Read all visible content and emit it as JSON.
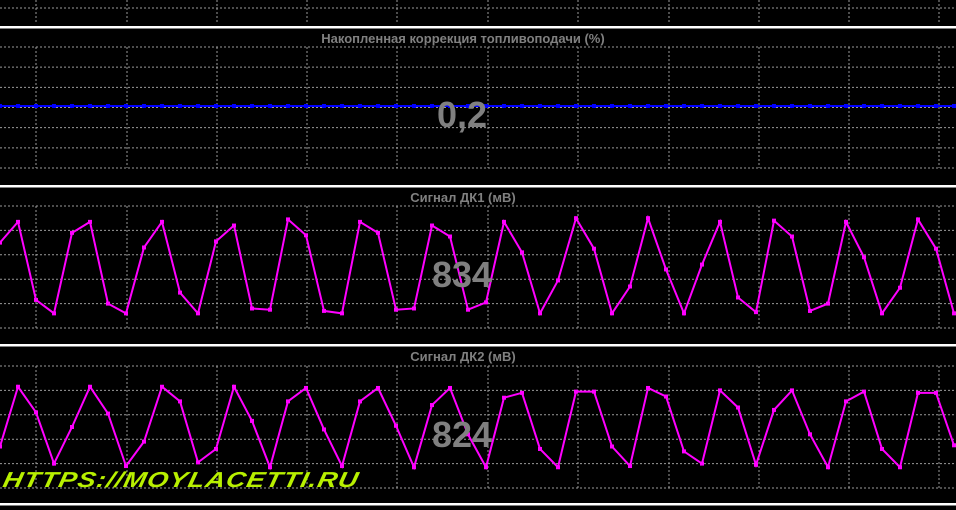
{
  "colors": {
    "grid": "#9a9a9a",
    "separator": "#ffffff",
    "title": "#808080",
    "fuel_trim": "#0000ff",
    "o2": "#ff00ff",
    "watermark": "#b8f000"
  },
  "watermark": "HTTPS://MOYLACETTI.RU",
  "chart_data": [
    {
      "type": "line",
      "title": "Накопленная коррекция топливоподачи  (%)",
      "current_value": "0,2",
      "ylim": [
        -30,
        30
      ],
      "grid": true,
      "values": [
        0.2,
        0.2,
        0.2,
        0.2,
        0.2,
        0.2,
        0.2,
        0.2,
        0.2,
        0.2,
        0.2,
        0.2,
        0.2,
        0.2,
        0.2,
        0.2,
        0.2,
        0.2,
        0.2,
        0.2,
        0.2,
        0.2,
        0.2,
        0.2,
        0.2,
        0.2,
        0.2,
        0.2,
        0.2,
        0.2,
        0.2,
        0.2,
        0.2,
        0.2,
        0.2,
        0.2,
        0.2,
        0.2,
        0.2,
        0.2,
        0.2,
        0.2,
        0.2,
        0.2,
        0.2,
        0.2,
        0.2,
        0.2,
        0.2,
        0.2,
        0.2,
        0.2,
        0.2,
        0.2
      ]
    },
    {
      "type": "line",
      "title": "Сигнал ДК1  (мВ)",
      "current_value": "834",
      "ylim": [
        0,
        1000
      ],
      "grid": true,
      "values": [
        700,
        870,
        230,
        120,
        780,
        870,
        200,
        120,
        660,
        870,
        290,
        120,
        710,
        840,
        160,
        150,
        890,
        760,
        140,
        120,
        870,
        780,
        150,
        160,
        840,
        750,
        150,
        210,
        870,
        620,
        120,
        390,
        900,
        650,
        120,
        340,
        900,
        480,
        120,
        520,
        870,
        250,
        130,
        880,
        750,
        140,
        200,
        870,
        580,
        120,
        330,
        890,
        650,
        120
      ]
    },
    {
      "type": "line",
      "title": "Сигнал ДК2  (мВ)",
      "current_value": "824",
      "ylim": [
        0,
        1000
      ],
      "grid": true,
      "values": [
        340,
        830,
        620,
        200,
        500,
        830,
        610,
        180,
        380,
        830,
        710,
        210,
        320,
        830,
        550,
        170,
        710,
        820,
        480,
        180,
        710,
        820,
        510,
        170,
        680,
        820,
        440,
        170,
        740,
        780,
        320,
        170,
        790,
        790,
        340,
        180,
        820,
        750,
        300,
        200,
        800,
        660,
        190,
        640,
        800,
        440,
        170,
        710,
        790,
        320,
        170,
        780,
        780,
        350
      ]
    }
  ]
}
